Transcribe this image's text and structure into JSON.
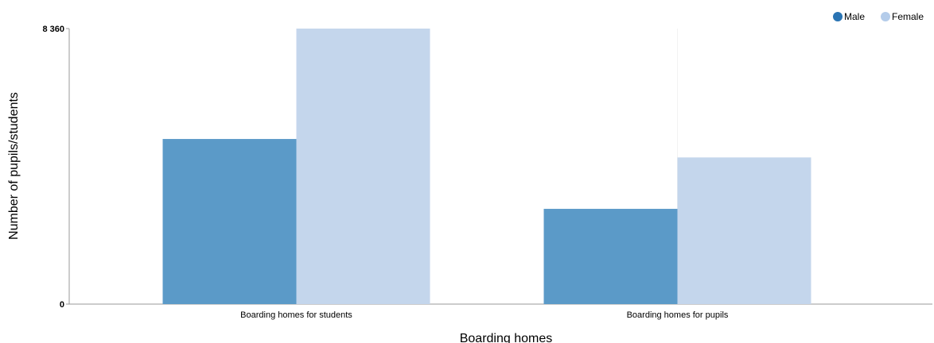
{
  "chart_data": {
    "type": "bar",
    "title": "",
    "xlabel": "Boarding homes",
    "ylabel": "Number of pupils/students",
    "categories": [
      "Boarding homes for students",
      "Boarding homes for pupils"
    ],
    "series": [
      {
        "name": "Male",
        "values": [
          5010,
          2890
        ],
        "color": "#5b9ac8",
        "legend_color": "#2a74b3"
      },
      {
        "name": "Female",
        "values": [
          8360,
          4450
        ],
        "color": "#c4d6ec",
        "legend_color": "#b4ccea"
      }
    ],
    "ylim": [
      0,
      8360
    ],
    "yticks": [
      {
        "value": 0,
        "label": "0"
      },
      {
        "value": 8360,
        "label": "8 360"
      }
    ],
    "grid": false,
    "legend_position": "top-right"
  }
}
